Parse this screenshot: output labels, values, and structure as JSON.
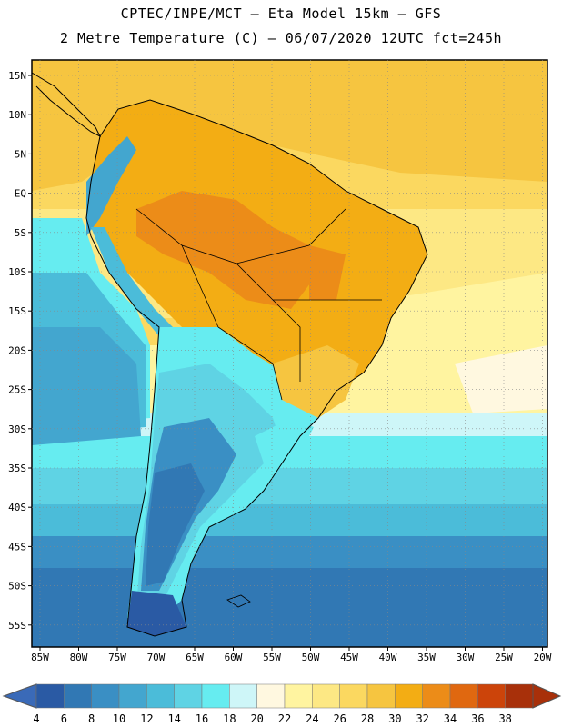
{
  "header": {
    "line1": "CPTEC/INPE/MCT –  Eta Model 15km – GFS",
    "line2": "2 Metre Temperature (C) – 06/07/2020 12UTC fct=245h"
  },
  "map": {
    "lat_ticks": [
      "15N",
      "10N",
      "5N",
      "EQ",
      "5S",
      "10S",
      "15S",
      "20S",
      "25S",
      "30S",
      "35S",
      "40S",
      "45S",
      "50S",
      "55S"
    ],
    "lon_ticks": [
      "85W",
      "80W",
      "75W",
      "70W",
      "65W",
      "60W",
      "55W",
      "50W",
      "45W",
      "40W",
      "35W",
      "30W",
      "25W",
      "20W"
    ]
  },
  "colorbar": {
    "levels": [
      "4",
      "6",
      "8",
      "10",
      "12",
      "14",
      "16",
      "18",
      "20",
      "22",
      "24",
      "26",
      "28",
      "30",
      "32",
      "34",
      "36",
      "38"
    ],
    "colors": [
      "#2a5aa4",
      "#3178b4",
      "#3a8fc4",
      "#43a6cf",
      "#4bbcd9",
      "#5fd3e4",
      "#66ecf0",
      "#cef6f8",
      "#fff8e0",
      "#fff4a0",
      "#fde884",
      "#fbd860",
      "#f6c540",
      "#f3ad14",
      "#ec8c18",
      "#e06810",
      "#cc440a",
      "#a8300a"
    ],
    "under_color": "#3a6ab8",
    "over_color": "#a8300a"
  }
}
